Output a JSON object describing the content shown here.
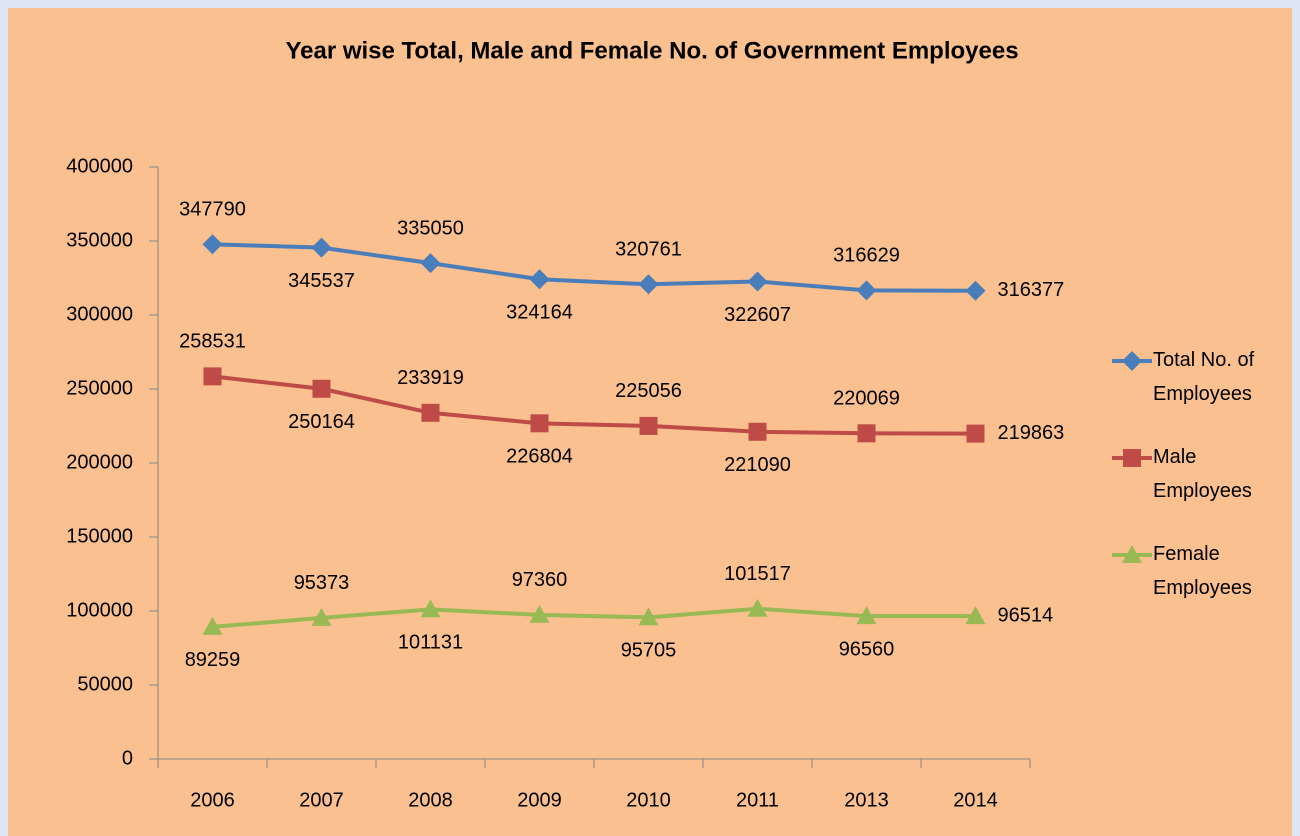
{
  "chart_data": {
    "type": "line",
    "title": "Year wise Total, Male and Female No. of Government Employees",
    "categories": [
      "2006",
      "2007",
      "2008",
      "2009",
      "2010",
      "2011",
      "2013",
      "2014"
    ],
    "series": [
      {
        "name": "Total No. of Employees",
        "color": "#4a7ebb",
        "marker": "diamond",
        "values": [
          347790,
          345537,
          335050,
          324164,
          320761,
          322607,
          316629,
          316377
        ]
      },
      {
        "name": "Male Employees",
        "color": "#be4b48",
        "marker": "square",
        "values": [
          258531,
          250164,
          233919,
          226804,
          225056,
          221090,
          220069,
          219863
        ]
      },
      {
        "name": "Female Employees",
        "color": "#98b954",
        "marker": "triangle",
        "values": [
          89259,
          95373,
          101131,
          97360,
          95705,
          101517,
          96560,
          96514
        ]
      }
    ],
    "ylim": [
      0,
      400000
    ],
    "yticks": [
      0,
      50000,
      100000,
      150000,
      200000,
      250000,
      300000,
      350000,
      400000
    ],
    "legend": "right",
    "grid": false
  }
}
